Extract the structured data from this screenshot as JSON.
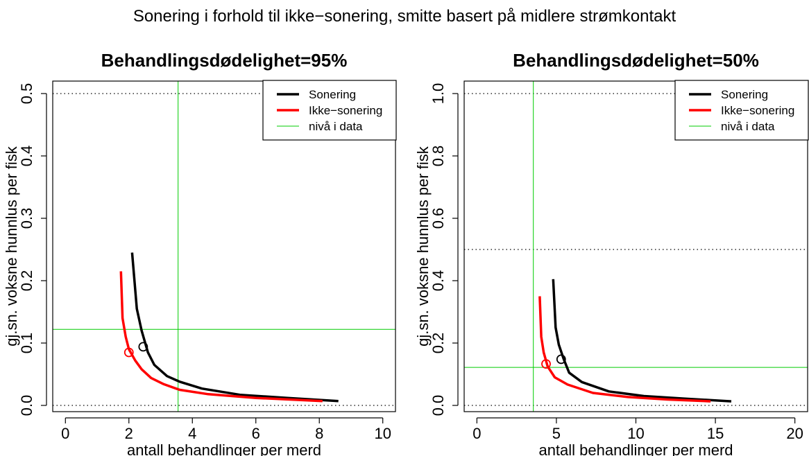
{
  "supertitle": "Sonering i forhold til ikke−sonering, smitte basert på midlere strømkontakt",
  "chart_data": [
    {
      "type": "line",
      "title": "Behandlingsdødelighet=95%",
      "xlabel": "antall behandlinger per merd",
      "ylabel": "gj.sn. voksne hunnlus per fisk",
      "xlim": [
        -0.4,
        10.4
      ],
      "ylim": [
        -0.01,
        0.52
      ],
      "xticks": [
        "0",
        "2",
        "4",
        "6",
        "8",
        "10"
      ],
      "yticks": [
        "0.0",
        "0.1",
        "0.2",
        "0.3",
        "0.4",
        "0.5"
      ],
      "legend_position": "top-right",
      "reference_lines_dotted_y": [
        0.0,
        0.5
      ],
      "series": [
        {
          "name": "Sonering",
          "color": "#000000",
          "x": [
            2.1,
            2.25,
            2.4,
            2.6,
            2.8,
            3.2,
            3.6,
            4.3,
            5.5,
            7.0,
            8.6
          ],
          "y": [
            0.245,
            0.155,
            0.12,
            0.085,
            0.065,
            0.047,
            0.038,
            0.027,
            0.017,
            0.012,
            0.007
          ]
        },
        {
          "name": "Ikke−sonering",
          "color": "#ff0000",
          "x": [
            1.75,
            1.8,
            1.9,
            2.0,
            2.2,
            2.4,
            2.7,
            3.1,
            3.6,
            4.5,
            6.0,
            8.1
          ],
          "y": [
            0.215,
            0.14,
            0.11,
            0.09,
            0.072,
            0.058,
            0.044,
            0.034,
            0.025,
            0.018,
            0.012,
            0.007
          ]
        },
        {
          "name": "nivå i data",
          "color": "#00cc00",
          "vline_x": 3.55,
          "hline_y": 0.122
        }
      ],
      "markers": [
        {
          "series": "Sonering",
          "x": 2.45,
          "y": 0.094
        },
        {
          "series": "Ikke−sonering",
          "x": 2.0,
          "y": 0.085
        }
      ]
    },
    {
      "type": "line",
      "title": "Behandlingsdødelighet=50%",
      "xlabel": "antall behandlinger per merd",
      "ylabel": "gj.sn. voksne hunnlus per fisk",
      "xlim": [
        -0.8,
        20.8
      ],
      "ylim": [
        -0.02,
        1.04
      ],
      "xticks": [
        "0",
        "5",
        "10",
        "15",
        "20"
      ],
      "yticks": [
        "0.0",
        "0.2",
        "0.4",
        "0.6",
        "0.8",
        "1.0"
      ],
      "legend_position": "top-right",
      "reference_lines_dotted_y": [
        0.0,
        0.5,
        1.0
      ],
      "series": [
        {
          "name": "Sonering",
          "color": "#000000",
          "x": [
            4.8,
            4.95,
            5.15,
            5.45,
            5.8,
            6.6,
            8.3,
            10.5,
            13.0,
            16.0
          ],
          "y": [
            0.405,
            0.25,
            0.195,
            0.15,
            0.105,
            0.075,
            0.045,
            0.03,
            0.022,
            0.013
          ]
        },
        {
          "name": "Ikke−sonering",
          "color": "#ff0000",
          "x": [
            3.95,
            4.05,
            4.2,
            4.45,
            4.9,
            5.7,
            7.3,
            9.5,
            12.0,
            14.7
          ],
          "y": [
            0.35,
            0.22,
            0.17,
            0.125,
            0.09,
            0.067,
            0.04,
            0.027,
            0.019,
            0.013
          ]
        },
        {
          "name": "nivå i data",
          "color": "#00cc00",
          "vline_x": 3.55,
          "hline_y": 0.122
        }
      ],
      "markers": [
        {
          "series": "Sonering",
          "x": 5.3,
          "y": 0.148
        },
        {
          "series": "Ikke−sonering",
          "x": 4.35,
          "y": 0.133
        }
      ]
    }
  ]
}
